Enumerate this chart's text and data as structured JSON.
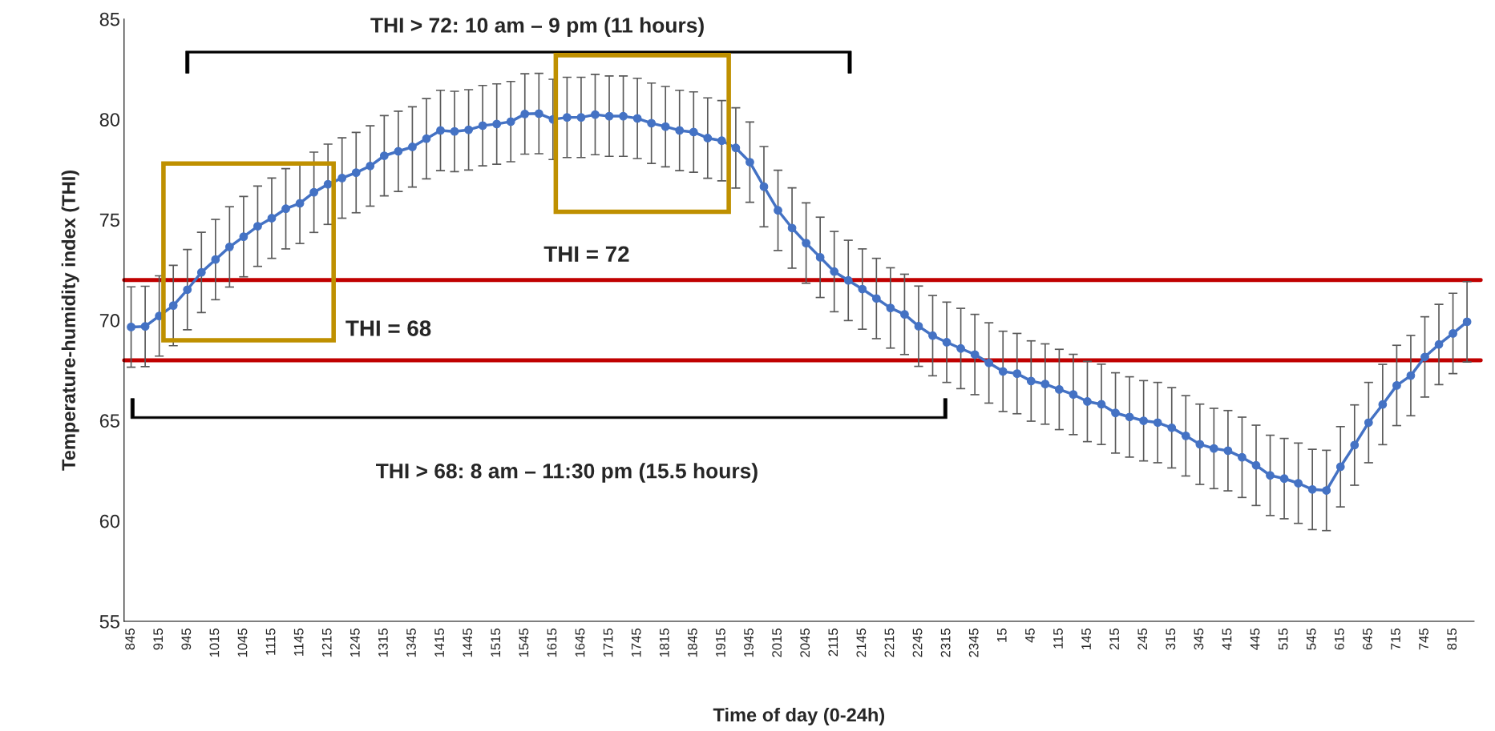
{
  "chart_data": {
    "type": "line",
    "xlabel": "Time of day (0-24h)",
    "ylabel": "Temperature-humidity index (THI)",
    "categories": [
      "845",
      null,
      "915",
      null,
      "945",
      null,
      "1015",
      null,
      "1045",
      null,
      "1115",
      null,
      "1145",
      null,
      "1215",
      null,
      "1245",
      null,
      "1315",
      null,
      "1345",
      null,
      "1415",
      null,
      "1445",
      null,
      "1515",
      null,
      "1545",
      null,
      "1615",
      null,
      "1645",
      null,
      "1715",
      null,
      "1745",
      null,
      "1815",
      null,
      "1845",
      null,
      "1915",
      null,
      "1945",
      null,
      "2015",
      null,
      "2045",
      null,
      "2115",
      null,
      "2145",
      null,
      "2215",
      null,
      "2245",
      null,
      "2315",
      null,
      "2345",
      null,
      "15",
      null,
      "45",
      null,
      "115",
      null,
      "145",
      null,
      "215",
      null,
      "245",
      null,
      "315",
      null,
      "345",
      null,
      "415",
      null,
      "445",
      null,
      "515",
      null,
      "545",
      null,
      "615",
      null,
      "645",
      null,
      "715",
      null,
      "745",
      null,
      "815",
      null
    ],
    "series": [
      {
        "color": "#4472c4",
        "values": [
          69.66,
          69.69,
          70.21,
          70.73,
          71.52,
          72.38,
          73.02,
          73.65,
          74.16,
          74.68,
          75.08,
          75.55,
          75.82,
          76.37,
          76.77,
          77.08,
          77.35,
          77.68,
          78.19,
          78.41,
          78.63,
          79.04,
          79.45,
          79.4,
          79.48,
          79.69,
          79.77,
          79.89,
          80.27,
          80.29,
          80.0,
          80.1,
          80.1,
          80.24,
          80.16,
          80.16,
          80.05,
          79.81,
          79.64,
          79.45,
          79.37,
          79.07,
          78.94,
          78.58,
          77.87,
          76.65,
          75.47,
          74.59,
          73.84,
          73.13,
          72.42,
          71.98,
          71.55,
          71.08,
          70.61,
          70.29,
          69.7,
          69.23,
          68.9,
          68.59,
          68.29,
          67.87,
          67.45,
          67.34,
          66.97,
          66.82,
          66.55,
          66.3,
          65.95,
          65.81,
          65.38,
          65.18,
          64.99,
          64.9,
          64.64,
          64.24,
          63.82,
          63.61,
          63.5,
          63.17,
          62.77,
          62.27,
          62.11,
          61.88,
          61.57,
          61.52,
          62.7,
          63.78,
          64.9,
          65.8,
          66.75,
          67.24,
          68.17,
          68.79,
          69.34,
          69.92
        ],
        "errors": [
          2,
          2,
          2,
          2,
          2,
          2,
          2,
          2,
          2,
          2,
          2,
          2,
          2,
          2,
          2,
          2,
          2,
          2,
          2,
          2,
          2,
          2,
          2,
          2,
          2,
          2,
          2,
          2,
          2,
          2,
          2,
          2,
          2,
          2,
          2,
          2,
          2,
          2,
          2,
          2,
          2,
          2,
          2,
          2,
          2,
          2,
          2,
          2,
          2,
          2,
          2,
          2,
          2,
          2,
          2,
          2,
          2,
          2,
          2,
          2,
          2,
          2,
          2,
          2,
          2,
          2,
          2,
          2,
          2,
          2,
          2,
          2,
          2,
          2,
          2,
          2,
          2,
          2,
          2,
          2,
          2,
          2,
          2,
          2,
          2,
          2,
          2,
          2,
          2,
          2,
          2,
          2,
          2,
          2,
          2,
          2
        ]
      }
    ],
    "ylim": [
      55,
      85
    ],
    "yticks": [
      55,
      60,
      65,
      70,
      75,
      80,
      85
    ],
    "marker": "circle",
    "line_style": "solid",
    "grid": false,
    "legend": false,
    "ref_lines": [
      {
        "axis": "y",
        "value": 72,
        "label": "THI = 72",
        "color": "#c00000"
      },
      {
        "axis": "y",
        "value": 68,
        "label": "THI = 68",
        "color": "#c00000"
      }
    ],
    "annotations": [
      "THI > 72: 10 am – 9 pm (11 hours)",
      "THI > 68: 8 am – 11:30 pm (15.5 hours)"
    ]
  }
}
